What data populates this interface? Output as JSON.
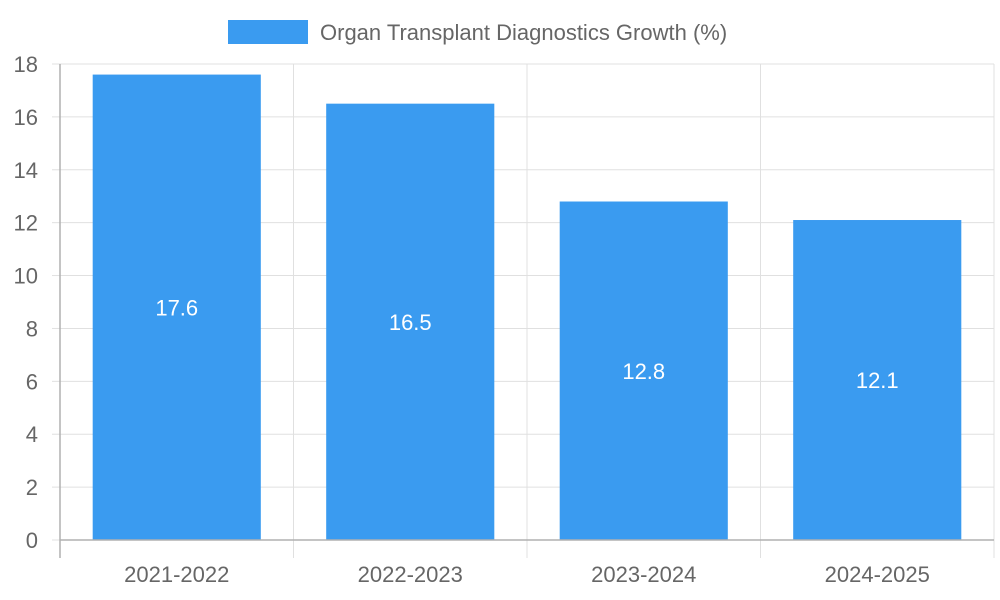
{
  "chart_data": {
    "type": "bar",
    "title": "",
    "xlabel": "",
    "ylabel": "",
    "categories": [
      "2021-2022",
      "2022-2023",
      "2023-2024",
      "2024-2025"
    ],
    "series": [
      {
        "name": "Organ Transplant Diagnostics Growth (%)",
        "values": [
          17.6,
          16.5,
          12.8,
          12.1
        ],
        "color": "#3a9bf0"
      }
    ],
    "ylim": [
      0,
      18
    ],
    "yticks": [
      0,
      2,
      4,
      6,
      8,
      10,
      12,
      14,
      16,
      18
    ],
    "grid": true,
    "legend_position": "top-center",
    "data_labels": [
      "17.6",
      "16.5",
      "12.8",
      "12.1"
    ]
  },
  "colors": {
    "bar": "#3a9bf0",
    "grid": "#e0e0e0",
    "axis": "#b0b0b0",
    "text": "#666666",
    "label_text": "#ffffff"
  }
}
